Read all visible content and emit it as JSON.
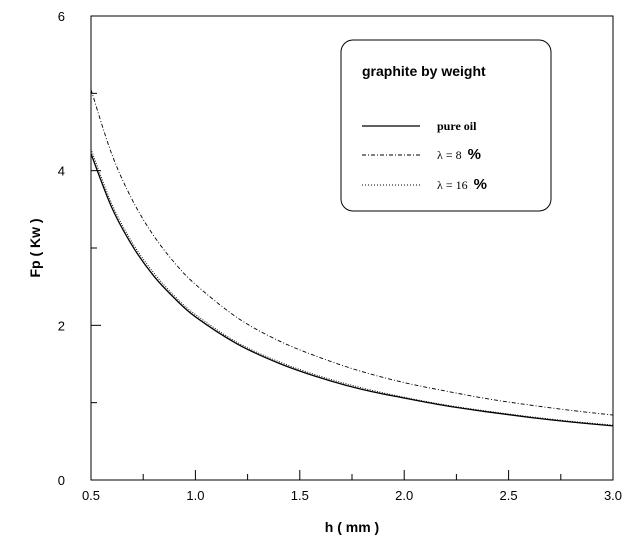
{
  "chart_data": {
    "type": "line",
    "xlabel": "h ( mm )",
    "ylabel": "Fp ( Kw )",
    "xlim": [
      0.5,
      3.0
    ],
    "ylim": [
      0,
      6
    ],
    "x_ticks": [
      "0.5",
      "1.0",
      "1.5",
      "2.0",
      "2.5",
      "3.0"
    ],
    "y_ticks": [
      "0",
      "2",
      "4",
      "6"
    ],
    "grid": false,
    "legend": {
      "title": "graphite by weight",
      "placement": "top-right",
      "entries": [
        {
          "prefix": "pure oil",
          "suffix": ""
        },
        {
          "prefix": "λ =  8",
          "suffix": "%"
        },
        {
          "prefix": "λ = 16",
          "suffix": "%"
        }
      ]
    },
    "series": [
      {
        "name": "pure oil",
        "style": "solid",
        "x": [
          0.5,
          0.6,
          0.7,
          0.8,
          0.9,
          1.0,
          1.2,
          1.4,
          1.6,
          1.8,
          2.0,
          2.2,
          2.4,
          2.6,
          2.8,
          3.0
        ],
        "y": [
          4.22,
          3.52,
          3.02,
          2.64,
          2.35,
          2.11,
          1.76,
          1.51,
          1.32,
          1.17,
          1.06,
          0.96,
          0.88,
          0.81,
          0.75,
          0.7
        ]
      },
      {
        "name": "λ =  8 %",
        "style": "dotted",
        "x": [
          0.5,
          0.6,
          0.7,
          0.8,
          0.9,
          1.0,
          1.2,
          1.4,
          1.6,
          1.8,
          2.0,
          2.2,
          2.4,
          2.6,
          2.8,
          3.0
        ],
        "y": [
          4.28,
          3.57,
          3.06,
          2.68,
          2.38,
          2.14,
          1.78,
          1.53,
          1.34,
          1.19,
          1.07,
          0.97,
          0.89,
          0.82,
          0.76,
          0.71
        ]
      },
      {
        "name": "λ = 16 %",
        "style": "dash-dot",
        "x": [
          0.5,
          0.6,
          0.7,
          0.8,
          0.9,
          1.0,
          1.2,
          1.4,
          1.6,
          1.8,
          2.0,
          2.2,
          2.4,
          2.6,
          2.8,
          3.0
        ],
        "y": [
          5.05,
          4.21,
          3.61,
          3.16,
          2.81,
          2.53,
          2.1,
          1.8,
          1.58,
          1.4,
          1.26,
          1.15,
          1.05,
          0.97,
          0.9,
          0.84
        ]
      }
    ]
  }
}
